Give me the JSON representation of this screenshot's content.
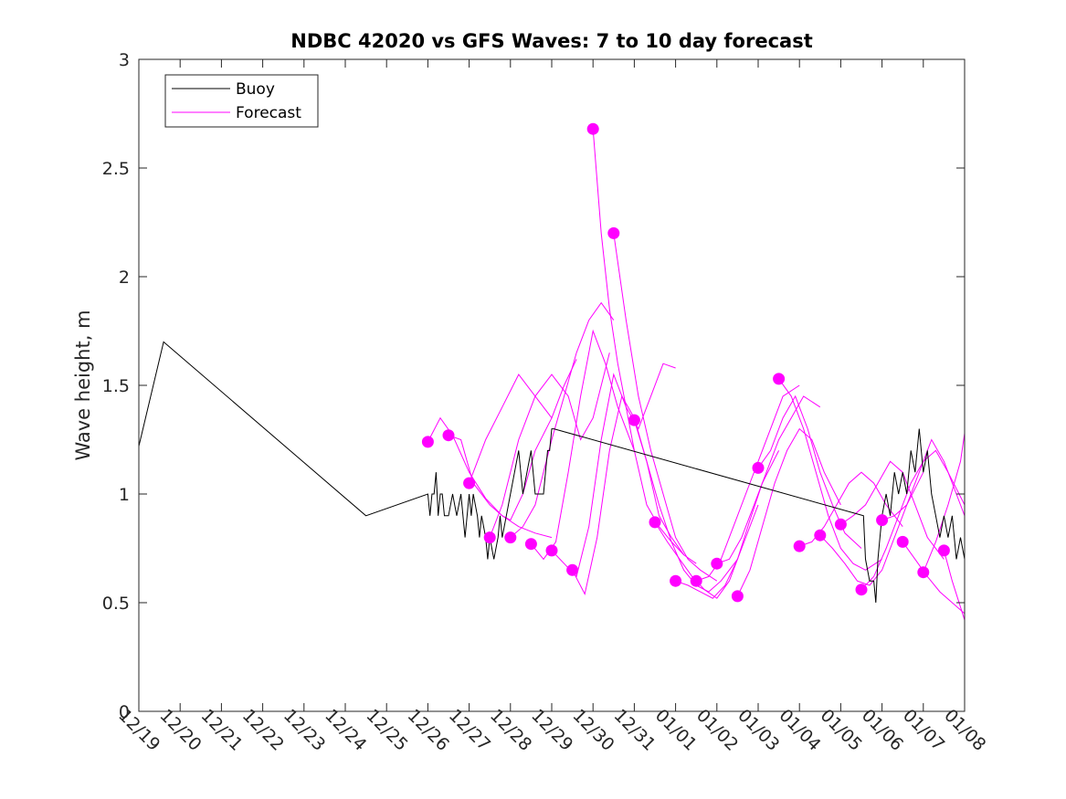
{
  "chart_data": {
    "type": "line",
    "title": "NDBC 42020 vs GFS Waves: 7 to 10 day forecast",
    "xlabel": "",
    "ylabel": "Wave height, m",
    "xlim": [
      0,
      20
    ],
    "ylim": [
      0,
      3
    ],
    "x_tick_labels": [
      "12/19",
      "12/20",
      "12/21",
      "12/22",
      "12/23",
      "12/24",
      "12/25",
      "12/26",
      "12/27",
      "12/28",
      "12/29",
      "12/30",
      "12/31",
      "01/01",
      "01/02",
      "01/03",
      "01/04",
      "01/05",
      "01/06",
      "01/07",
      "01/08"
    ],
    "y_ticks": [
      0,
      0.5,
      1,
      1.5,
      2,
      2.5,
      3
    ],
    "y_tick_labels": [
      "0",
      "0.5",
      "1",
      "1.5",
      "2",
      "2.5",
      "3"
    ],
    "legend": {
      "position": "top-left",
      "entries": [
        {
          "name": "Buoy",
          "color": "#000000"
        },
        {
          "name": "Forecast",
          "color": "#ff00ff"
        }
      ]
    },
    "colors": {
      "buoy": "#000000",
      "forecast": "#ff00ff"
    },
    "buoy": {
      "name": "Buoy",
      "x": [
        0,
        0.6,
        5.5,
        7.0,
        7.05,
        7.1,
        7.15,
        7.2,
        7.25,
        7.3,
        7.35,
        7.4,
        7.5,
        7.6,
        7.7,
        7.8,
        7.9,
        8.0,
        8.05,
        8.1,
        8.2,
        8.25,
        8.3,
        8.4,
        8.45,
        8.5,
        8.6,
        8.7,
        8.75,
        8.8,
        8.9,
        9.0,
        9.1,
        9.2,
        9.3,
        9.4,
        9.5,
        9.6,
        9.7,
        9.8,
        9.85,
        9.9,
        9.95,
        10.0,
        10.05,
        17.55,
        17.6,
        17.7,
        17.8,
        17.85,
        17.9,
        17.95,
        18.0,
        18.1,
        18.2,
        18.3,
        18.4,
        18.5,
        18.6,
        18.7,
        18.8,
        18.9,
        19.0,
        19.1,
        19.2,
        19.3,
        19.4,
        19.5,
        19.6,
        19.7,
        19.8,
        19.9,
        20.0
      ],
      "y": [
        1.22,
        1.7,
        0.9,
        1.0,
        0.9,
        1.0,
        1.0,
        1.1,
        0.9,
        1.0,
        1.0,
        0.9,
        0.9,
        1.0,
        0.9,
        1.0,
        0.8,
        1.0,
        0.9,
        1.0,
        0.9,
        0.8,
        0.9,
        0.8,
        0.7,
        0.8,
        0.7,
        0.8,
        0.9,
        0.8,
        0.9,
        1.0,
        1.1,
        1.2,
        1.0,
        1.1,
        1.2,
        1.0,
        1.0,
        1.0,
        1.1,
        1.2,
        1.2,
        1.3,
        1.3,
        0.9,
        0.7,
        0.6,
        0.6,
        0.5,
        0.7,
        0.8,
        0.9,
        1.0,
        0.9,
        1.1,
        1.0,
        1.1,
        1.0,
        1.2,
        1.1,
        1.3,
        1.1,
        1.2,
        1.0,
        0.9,
        0.8,
        0.9,
        0.8,
        0.9,
        0.7,
        0.8,
        0.7
      ]
    },
    "forecast": {
      "name": "Forecast",
      "series": [
        {
          "x": [
            7.0,
            7.3,
            7.6,
            8.0,
            8.4,
            8.8,
            9.2,
            9.6,
            10.0
          ],
          "y": [
            1.24,
            1.35,
            1.27,
            1.1,
            0.98,
            0.9,
            0.85,
            0.82,
            0.8
          ]
        },
        {
          "x": [
            7.5,
            7.8,
            8.1,
            8.5,
            8.8,
            9.0,
            9.3,
            9.6,
            10.0
          ],
          "y": [
            1.27,
            1.25,
            1.05,
            0.95,
            0.9,
            0.88,
            1.0,
            1.2,
            1.35
          ]
        },
        {
          "x": [
            8.0,
            8.4,
            8.8,
            9.2,
            9.6,
            10.0,
            10.3,
            10.6
          ],
          "y": [
            1.05,
            1.25,
            1.4,
            1.55,
            1.45,
            1.35,
            1.5,
            1.62
          ]
        },
        {
          "x": [
            8.5,
            8.8,
            9.2,
            9.6,
            10.0,
            10.4,
            10.7,
            11.0,
            11.4
          ],
          "y": [
            0.8,
            0.95,
            1.25,
            1.45,
            1.55,
            1.45,
            1.25,
            1.35,
            1.65
          ]
        },
        {
          "x": [
            9.0,
            9.3,
            9.6,
            10.0,
            10.3,
            10.6,
            10.9,
            11.2,
            11.5
          ],
          "y": [
            0.8,
            0.85,
            0.95,
            1.25,
            1.45,
            1.65,
            1.8,
            1.88,
            1.8
          ]
        },
        {
          "x": [
            9.5,
            9.8,
            10.1,
            10.4,
            10.7,
            11.0,
            11.3,
            11.6,
            12.0
          ],
          "y": [
            0.77,
            0.7,
            0.78,
            1.1,
            1.45,
            1.75,
            1.6,
            1.4,
            1.2
          ]
        },
        {
          "x": [
            10.0,
            10.3,
            10.6,
            10.9,
            11.2,
            11.5,
            11.8,
            12.1,
            12.4,
            12.7,
            13.0
          ],
          "y": [
            0.74,
            0.68,
            0.62,
            0.85,
            1.25,
            1.55,
            1.4,
            1.3,
            1.45,
            1.6,
            1.58
          ]
        },
        {
          "x": [
            10.5,
            10.8,
            11.1,
            11.4,
            11.7,
            12.0,
            12.3,
            12.6,
            12.9,
            13.2
          ],
          "y": [
            0.65,
            0.54,
            0.8,
            1.2,
            1.45,
            1.35,
            1.15,
            0.9,
            0.8,
            0.72
          ]
        },
        {
          "x": [
            11.0,
            11.2,
            11.4,
            11.6,
            11.8,
            12.0,
            12.3,
            12.6,
            12.9,
            13.2,
            13.5
          ],
          "y": [
            2.68,
            2.2,
            1.85,
            1.6,
            1.4,
            1.2,
            0.95,
            0.85,
            0.78,
            0.72,
            0.68
          ]
        },
        {
          "x": [
            11.5,
            11.8,
            12.1,
            12.4,
            12.7,
            13.0,
            13.3,
            13.6,
            14.0
          ],
          "y": [
            2.2,
            1.8,
            1.45,
            1.2,
            1.0,
            0.8,
            0.7,
            0.65,
            0.6
          ]
        },
        {
          "x": [
            12.0,
            12.3,
            12.6,
            12.9,
            13.2,
            13.5,
            13.8,
            14.1,
            14.5
          ],
          "y": [
            1.34,
            1.15,
            0.95,
            0.78,
            0.65,
            0.58,
            0.55,
            0.6,
            0.7
          ]
        },
        {
          "x": [
            12.5,
            12.8,
            13.1,
            13.4,
            13.7,
            14.0,
            14.3,
            14.6,
            15.0
          ],
          "y": [
            0.87,
            0.78,
            0.7,
            0.62,
            0.56,
            0.52,
            0.6,
            0.75,
            0.95
          ]
        },
        {
          "x": [
            13.0,
            13.3,
            13.6,
            13.9,
            14.2,
            14.5,
            14.8,
            15.1,
            15.5
          ],
          "y": [
            0.6,
            0.58,
            0.55,
            0.52,
            0.58,
            0.7,
            0.88,
            1.05,
            1.2
          ]
        },
        {
          "x": [
            13.5,
            13.8,
            14.1,
            14.4,
            14.7,
            15.0,
            15.3,
            15.6,
            16.0
          ],
          "y": [
            0.6,
            0.62,
            0.7,
            0.85,
            1.0,
            1.15,
            1.3,
            1.45,
            1.5
          ]
        },
        {
          "x": [
            14.0,
            14.3,
            14.6,
            14.9,
            15.2,
            15.5,
            15.8,
            16.1,
            16.5
          ],
          "y": [
            0.68,
            0.7,
            0.8,
            0.95,
            1.1,
            1.25,
            1.35,
            1.45,
            1.4
          ]
        },
        {
          "x": [
            14.5,
            14.8,
            15.1,
            15.4,
            15.7,
            16.0,
            16.3,
            16.6,
            17.0
          ],
          "y": [
            0.53,
            0.65,
            0.85,
            1.05,
            1.2,
            1.3,
            1.25,
            1.1,
            0.95
          ]
        },
        {
          "x": [
            15.0,
            15.3,
            15.6,
            15.9,
            16.2,
            16.5,
            16.8,
            17.1,
            17.5
          ],
          "y": [
            1.12,
            1.2,
            1.35,
            1.45,
            1.3,
            1.1,
            0.95,
            0.82,
            0.75
          ]
        },
        {
          "x": [
            15.5,
            15.8,
            16.1,
            16.4,
            16.7,
            17.0,
            17.3,
            17.6,
            18.0
          ],
          "y": [
            1.53,
            1.45,
            1.3,
            1.1,
            0.9,
            0.75,
            0.68,
            0.65,
            0.7
          ]
        },
        {
          "x": [
            16.0,
            16.3,
            16.6,
            16.9,
            17.2,
            17.5,
            17.8,
            18.1,
            18.5
          ],
          "y": [
            0.76,
            0.78,
            0.85,
            0.95,
            1.05,
            1.1,
            1.05,
            0.95,
            0.85
          ]
        },
        {
          "x": [
            16.5,
            16.8,
            17.1,
            17.4,
            17.7,
            18.0,
            18.3,
            18.6,
            19.0
          ],
          "y": [
            0.81,
            0.75,
            0.68,
            0.6,
            0.58,
            0.65,
            0.8,
            0.95,
            1.1
          ]
        },
        {
          "x": [
            17.0,
            17.3,
            17.6,
            17.9,
            18.2,
            18.5,
            18.8,
            19.1,
            19.5
          ],
          "y": [
            0.86,
            0.9,
            0.95,
            1.05,
            1.15,
            1.1,
            0.95,
            0.8,
            0.7
          ]
        },
        {
          "x": [
            17.5,
            17.8,
            18.1,
            18.4,
            18.7,
            19.0,
            19.3,
            19.6,
            20.0
          ],
          "y": [
            0.56,
            0.62,
            0.75,
            0.9,
            1.05,
            1.15,
            1.2,
            1.1,
            0.95
          ]
        },
        {
          "x": [
            18.0,
            18.3,
            18.6,
            18.9,
            19.2,
            19.5,
            19.8,
            20.0
          ],
          "y": [
            0.88,
            0.9,
            0.95,
            1.1,
            1.25,
            1.15,
            1.0,
            0.9
          ]
        },
        {
          "x": [
            18.5,
            18.8,
            19.1,
            19.4,
            19.7,
            20.0
          ],
          "y": [
            0.78,
            0.7,
            0.62,
            0.55,
            0.5,
            0.45
          ]
        },
        {
          "x": [
            19.0,
            19.3,
            19.6,
            19.9,
            20.0
          ],
          "y": [
            0.64,
            0.78,
            0.95,
            1.15,
            1.28
          ]
        },
        {
          "x": [
            19.5,
            19.7,
            19.9,
            20.0
          ],
          "y": [
            0.74,
            0.6,
            0.48,
            0.42
          ]
        }
      ]
    }
  }
}
